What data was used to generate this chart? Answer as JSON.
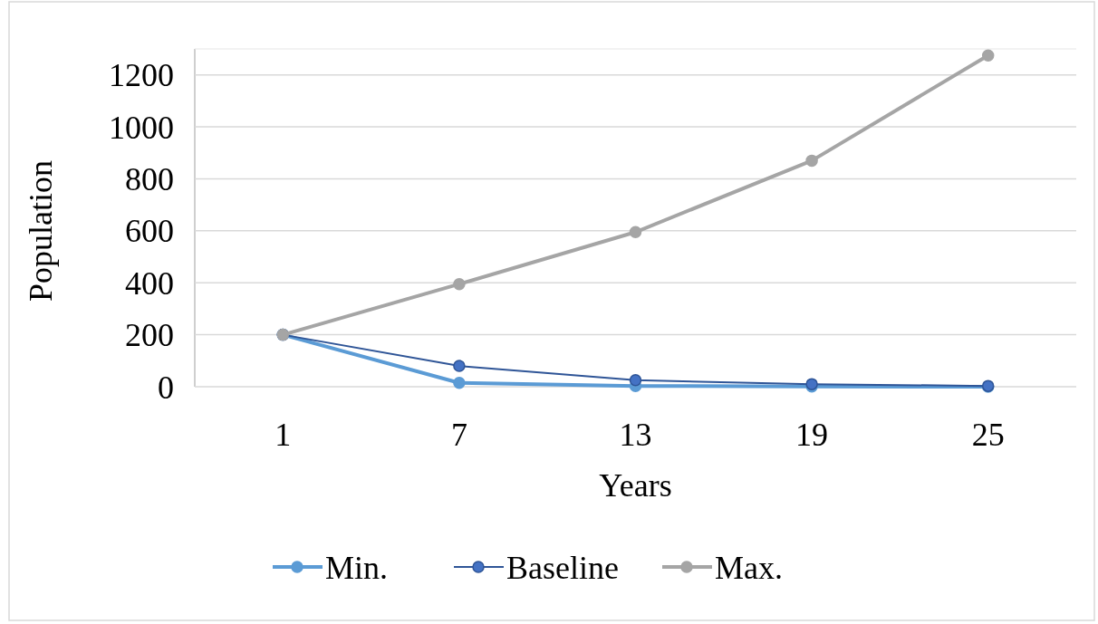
{
  "chart_data": {
    "type": "line",
    "xlabel": "Years",
    "ylabel": "Population",
    "categories": [
      "1",
      "7",
      "13",
      "19",
      "25"
    ],
    "series": [
      {
        "name": "Min.",
        "color": "#5b9bd5",
        "values": [
          200,
          15,
          3,
          1,
          0
        ]
      },
      {
        "name": "Baseline",
        "color": "#2f5597",
        "values": [
          200,
          80,
          25,
          10,
          3
        ]
      },
      {
        "name": "Max.",
        "color": "#a5a5a5",
        "values": [
          200,
          395,
          595,
          870,
          1275
        ]
      }
    ],
    "ylim": [
      0,
      1300
    ],
    "yticks": [
      0,
      200,
      400,
      600,
      800,
      1000,
      1200
    ],
    "grid": "y",
    "legend": "bottom",
    "marker": "circle"
  }
}
